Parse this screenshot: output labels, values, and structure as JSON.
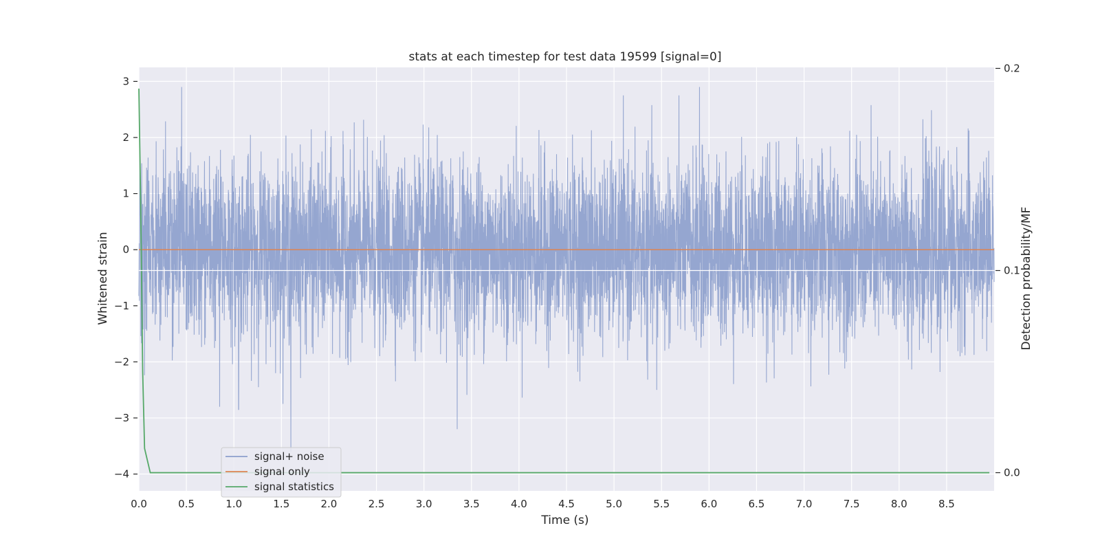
{
  "chart_data": {
    "type": "line",
    "title": "stats at each timestep for test data 19599 [signal=0]",
    "xlabel": "Time (s)",
    "ylabel": "Whitened strain",
    "y2label": "Detection probability/MF",
    "xlim": [
      0,
      9.0
    ],
    "ylim": [
      -4.3,
      3.25
    ],
    "y2lim": [
      -0.009,
      0.2005
    ],
    "x_ticks": [
      0.0,
      0.5,
      1.0,
      1.5,
      2.0,
      2.5,
      3.0,
      3.5,
      4.0,
      4.5,
      5.0,
      5.5,
      6.0,
      6.5,
      7.0,
      7.5,
      8.0,
      8.5
    ],
    "x_tick_labels": [
      "0.0",
      "0.5",
      "1.0",
      "1.5",
      "2.0",
      "2.5",
      "3.0",
      "3.5",
      "4.0",
      "4.5",
      "5.0",
      "5.5",
      "6.0",
      "6.5",
      "7.0",
      "7.5",
      "8.0",
      "8.5"
    ],
    "y_ticks": [
      3,
      2,
      1,
      0,
      -1,
      -2,
      -3,
      -4
    ],
    "y_tick_labels": [
      "3",
      "2",
      "1",
      "0",
      "−1",
      "−2",
      "−3",
      "−4"
    ],
    "y2_ticks": [
      0.2,
      0.1,
      0.0
    ],
    "y2_tick_labels": [
      "0.2",
      "0.1",
      "0.0"
    ],
    "grid": true,
    "legend_position": "lower-left",
    "series": [
      {
        "name": "signal+ noise",
        "color": "#8c9fcc",
        "axis": "left",
        "description_values": "whitened noise, roughly Gaussian with std ≈ 0.8, range ≈ [-3.6, 2.9]",
        "x_range": [
          0,
          9.0
        ],
        "sample_rate_hz": 2048,
        "highlight_points": [
          [
            0.45,
            2.9
          ],
          [
            1.6,
            -3.6
          ],
          [
            3.35,
            -3.2
          ],
          [
            5.9,
            2.9
          ],
          [
            0.85,
            -2.8
          ],
          [
            1.05,
            -2.85
          ],
          [
            5.45,
            -2.5
          ]
        ]
      },
      {
        "name": "signal only",
        "color": "#dd8452",
        "axis": "left",
        "x": [
          0,
          9.0
        ],
        "y": [
          0,
          0
        ]
      },
      {
        "name": "signal statistics",
        "color": "#55a868",
        "axis": "right",
        "x": [
          0.0,
          0.02,
          0.04,
          0.06,
          0.12,
          0.5,
          1.0,
          2.0,
          3.0,
          4.0,
          5.0,
          6.0,
          7.0,
          8.0,
          8.95
        ],
        "y": [
          0.19,
          0.13,
          0.05,
          0.012,
          0.0,
          0.0,
          0.0,
          0.0,
          0.0,
          0.0,
          0.0,
          0.0,
          0.0,
          0.0,
          0.0
        ]
      }
    ]
  }
}
